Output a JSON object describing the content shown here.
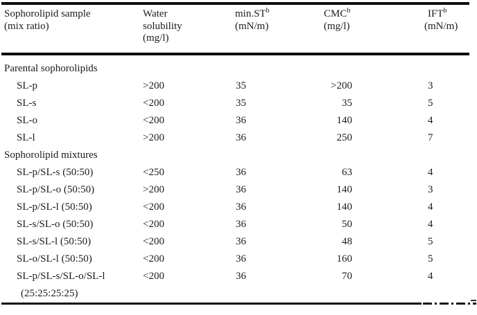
{
  "table": {
    "footnote_marker": "b",
    "columns": [
      {
        "key": "sample",
        "lines": [
          "Sophorolipid sample",
          "(mix ratio)"
        ],
        "sup": null
      },
      {
        "key": "water-solubility",
        "lines": [
          "Water",
          "solubility",
          "(mg/l)"
        ],
        "sup": null
      },
      {
        "key": "min-st",
        "lines": [
          "min.ST",
          "(mN/m)"
        ],
        "sup": "b"
      },
      {
        "key": "cmc",
        "lines": [
          "CMC",
          "(mg/l)"
        ],
        "sup": "b"
      },
      {
        "key": "ift",
        "lines": [
          "IFT",
          "(mN/m)"
        ],
        "sup": "b"
      }
    ],
    "sections": [
      {
        "title": "Parental sophorolipids",
        "rows": [
          {
            "sample": "SL-p",
            "solubility": ">200",
            "min_st": "35",
            "cmc": ">200",
            "ift": "3"
          },
          {
            "sample": "SL-s",
            "solubility": "<200",
            "min_st": "35",
            "cmc": "35",
            "ift": "5"
          },
          {
            "sample": "SL-o",
            "solubility": "<200",
            "min_st": "36",
            "cmc": "140",
            "ift": "4"
          },
          {
            "sample": "SL-l",
            "solubility": ">200",
            "min_st": "36",
            "cmc": "250",
            "ift": "7"
          }
        ]
      },
      {
        "title": "Sophorolipid mixtures",
        "rows": [
          {
            "sample": "SL-p/SL-s (50:50)",
            "solubility": "<250",
            "min_st": "36",
            "cmc": "63",
            "ift": "4"
          },
          {
            "sample": "SL-p/SL-o (50:50)",
            "solubility": ">200",
            "min_st": "36",
            "cmc": "140",
            "ift": "3"
          },
          {
            "sample": "SL-p/SL-l (50:50)",
            "solubility": "<200",
            "min_st": "36",
            "cmc": "140",
            "ift": "4"
          },
          {
            "sample": "SL-s/SL-o (50:50)",
            "solubility": "<200",
            "min_st": "36",
            "cmc": "50",
            "ift": "4"
          },
          {
            "sample": "SL-s/SL-l (50:50)",
            "solubility": "<200",
            "min_st": "36",
            "cmc": "48",
            "ift": "5"
          },
          {
            "sample": "SL-o/SL-l (50:50)",
            "solubility": "<200",
            "min_st": "36",
            "cmc": "160",
            "ift": "5"
          },
          {
            "sample": "SL-p/SL-s/SL-o/SL-l",
            "sample_line2": "(25:25:25:25)",
            "solubility": "<200",
            "min_st": "36",
            "cmc": "70",
            "ift": "4"
          }
        ]
      }
    ],
    "colors": {
      "text": "#1b1b1d",
      "rule": "#0d0d0d",
      "background": "#ffffff"
    }
  }
}
